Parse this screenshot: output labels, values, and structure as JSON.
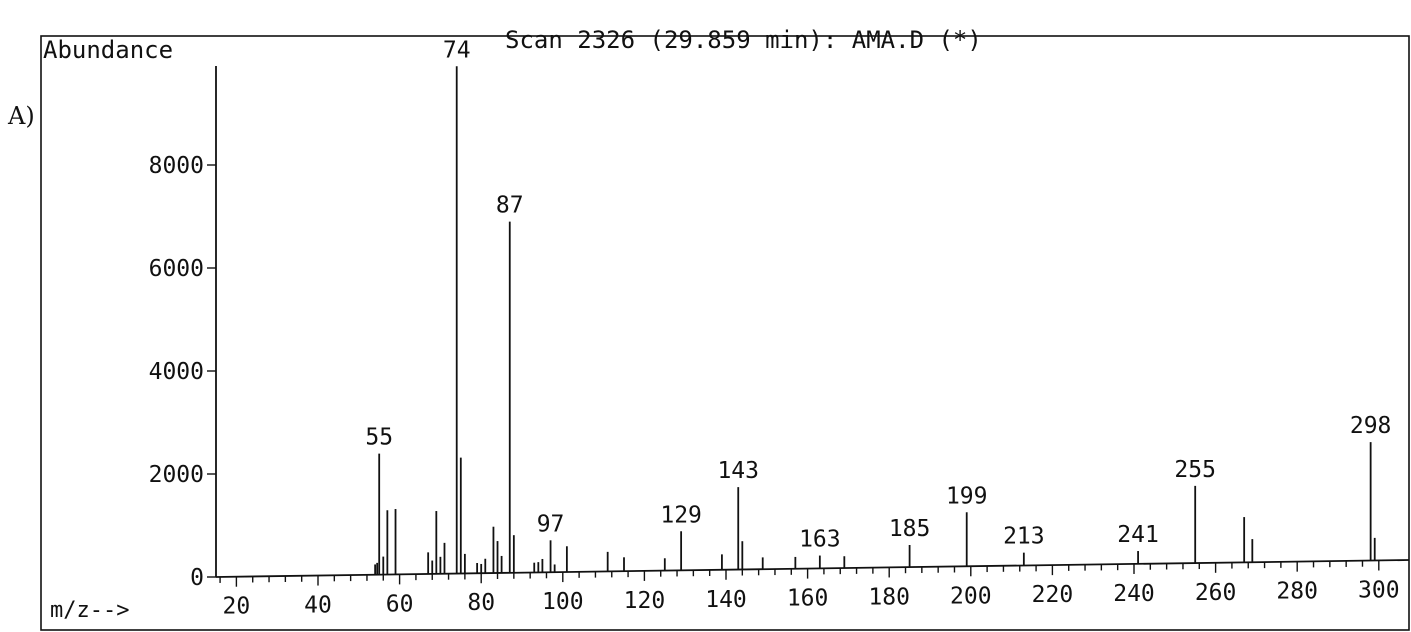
{
  "figure": {
    "panel_label": "A)",
    "header": "Scan 2326 (29.859 min): AMA.D (*)"
  },
  "chart_data": {
    "type": "bar",
    "title": "Scan 2326 (29.859 min): AMA.D (*)",
    "ylabel": "Abundance",
    "xlabel": "m/z-->",
    "xlim": [
      15,
      302
    ],
    "ylim": [
      0,
      9800
    ],
    "x_ticks": [
      20,
      40,
      60,
      80,
      100,
      120,
      140,
      160,
      180,
      200,
      220,
      240,
      260,
      280,
      300
    ],
    "x_tick_labels": [
      "20",
      "40",
      "60",
      "80",
      "100",
      "120",
      "140",
      "160",
      "180",
      "200",
      "220",
      "240",
      "260",
      "280",
      "300"
    ],
    "y_ticks": [
      0,
      2000,
      4000,
      6000,
      8000
    ],
    "y_tick_labels": [
      "0",
      "2000",
      "4000",
      "6000",
      "8000"
    ],
    "grid": false,
    "legend": "none",
    "peaks": [
      {
        "mz": 54,
        "abundance": 200
      },
      {
        "mz": 54.5,
        "abundance": 230
      },
      {
        "mz": 55,
        "abundance": 2350,
        "label": "55"
      },
      {
        "mz": 56,
        "abundance": 350
      },
      {
        "mz": 57,
        "abundance": 1250
      },
      {
        "mz": 59,
        "abundance": 1270
      },
      {
        "mz": 67,
        "abundance": 420
      },
      {
        "mz": 68,
        "abundance": 260
      },
      {
        "mz": 69,
        "abundance": 1220
      },
      {
        "mz": 70,
        "abundance": 330
      },
      {
        "mz": 71,
        "abundance": 600
      },
      {
        "mz": 74,
        "abundance": 9850,
        "label": "74"
      },
      {
        "mz": 75,
        "abundance": 2250
      },
      {
        "mz": 76,
        "abundance": 380
      },
      {
        "mz": 79,
        "abundance": 200
      },
      {
        "mz": 80,
        "abundance": 180
      },
      {
        "mz": 81,
        "abundance": 280
      },
      {
        "mz": 83,
        "abundance": 900
      },
      {
        "mz": 84,
        "abundance": 620
      },
      {
        "mz": 85,
        "abundance": 330
      },
      {
        "mz": 87,
        "abundance": 6820,
        "label": "87"
      },
      {
        "mz": 88,
        "abundance": 730
      },
      {
        "mz": 93,
        "abundance": 190
      },
      {
        "mz": 94,
        "abundance": 200
      },
      {
        "mz": 95,
        "abundance": 260
      },
      {
        "mz": 97,
        "abundance": 620,
        "label": "97"
      },
      {
        "mz": 98,
        "abundance": 150
      },
      {
        "mz": 101,
        "abundance": 500
      },
      {
        "mz": 111,
        "abundance": 380
      },
      {
        "mz": 115,
        "abundance": 270
      },
      {
        "mz": 125,
        "abundance": 240
      },
      {
        "mz": 129,
        "abundance": 760,
        "label": "129"
      },
      {
        "mz": 139,
        "abundance": 300
      },
      {
        "mz": 143,
        "abundance": 1600,
        "label": "143"
      },
      {
        "mz": 144,
        "abundance": 550
      },
      {
        "mz": 149,
        "abundance": 230
      },
      {
        "mz": 157,
        "abundance": 230
      },
      {
        "mz": 163,
        "abundance": 250,
        "label": "163"
      },
      {
        "mz": 169,
        "abundance": 230
      },
      {
        "mz": 185,
        "abundance": 430,
        "label": "185"
      },
      {
        "mz": 199,
        "abundance": 1050,
        "label": "199"
      },
      {
        "mz": 213,
        "abundance": 250,
        "label": "213"
      },
      {
        "mz": 241,
        "abundance": 250,
        "label": "241"
      },
      {
        "mz": 255,
        "abundance": 1500,
        "label": "255"
      },
      {
        "mz": 267,
        "abundance": 880
      },
      {
        "mz": 269,
        "abundance": 450
      },
      {
        "mz": 298,
        "abundance": 2300,
        "label": "298"
      },
      {
        "mz": 299,
        "abundance": 440
      }
    ]
  }
}
